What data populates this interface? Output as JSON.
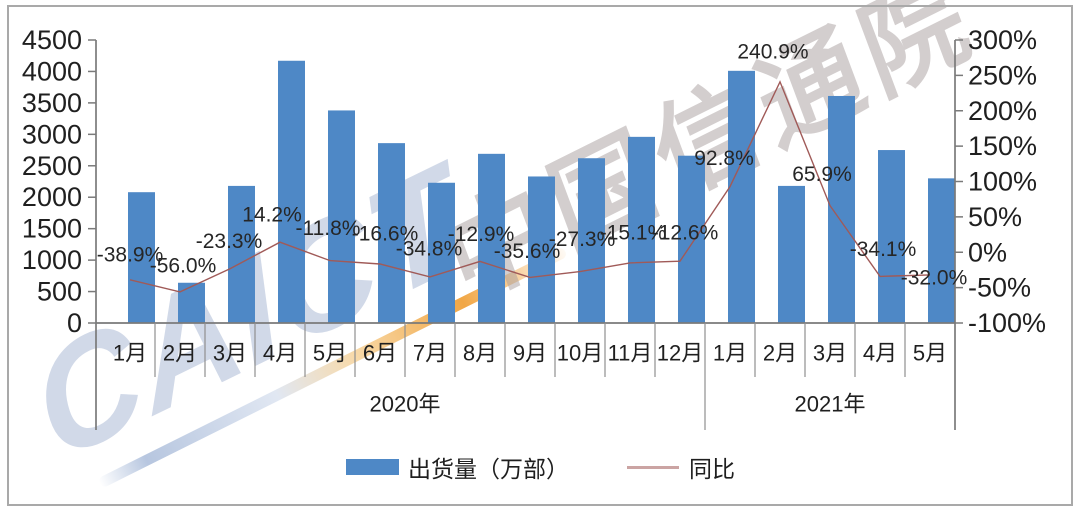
{
  "watermark": {
    "brand_latin": "CAICT",
    "brand_cn": "中国信通院"
  },
  "legend": {
    "bar_label": "出货量（万部）",
    "line_label": "同比"
  },
  "chart_data": {
    "type": "bar+line",
    "categories": [
      "1月",
      "2月",
      "3月",
      "4月",
      "5月",
      "6月",
      "7月",
      "8月",
      "9月",
      "10月",
      "11月",
      "12月",
      "1月",
      "2月",
      "3月",
      "4月",
      "5月"
    ],
    "year_groups": [
      {
        "label": "2020年",
        "span": 12
      },
      {
        "label": "2021年",
        "span": 5
      }
    ],
    "series": [
      {
        "name": "出货量（万部）",
        "type": "bar",
        "axis": "left",
        "color": "#4e88c6",
        "values": [
          2080,
          640,
          2180,
          4170,
          3380,
          2860,
          2230,
          2690,
          2330,
          2620,
          2960,
          2660,
          4010,
          2180,
          3610,
          2750,
          2300
        ]
      },
      {
        "name": "同比",
        "type": "line",
        "axis": "right",
        "color": "#a05a58",
        "values": [
          -38.9,
          -56.0,
          -23.3,
          14.2,
          -11.8,
          -16.6,
          -34.8,
          -12.9,
          -35.6,
          -27.3,
          -15.1,
          -12.6,
          92.8,
          240.9,
          65.9,
          -34.1,
          -32.0
        ],
        "point_labels": [
          "-38.9%",
          "-56.0%",
          "-23.3%",
          "14.2%",
          "-11.8%",
          "-16.6%",
          "-34.8%",
          "-12.9%",
          "-35.6%",
          "-27.3%",
          "-15.1%",
          "-12.6%",
          "92.8%",
          "240.9%",
          "65.9%",
          "-34.1%",
          "-32.0%"
        ]
      }
    ],
    "left_axis": {
      "min": 0,
      "max": 4500,
      "step": 500,
      "tick_labels": [
        "4500",
        "4000",
        "3500",
        "3000",
        "2500",
        "2000",
        "1500",
        "1000",
        "500",
        "0"
      ]
    },
    "right_axis": {
      "min": -100,
      "max": 300,
      "step": 50,
      "unit": "%",
      "tick_labels": [
        "300%",
        "250%",
        "200%",
        "150%",
        "100%",
        "50%",
        "0%",
        "-50%",
        "-100%"
      ]
    },
    "grid": false,
    "legend_position": "bottom"
  }
}
